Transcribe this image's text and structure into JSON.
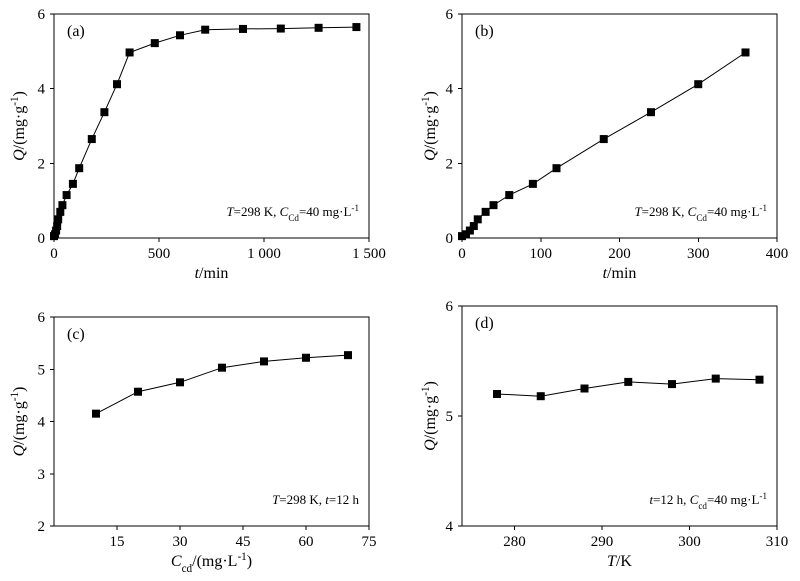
{
  "chart_data": [
    {
      "type": "line",
      "panel_label": "(a)",
      "annotation": {
        "T_sym": "T",
        "T_val": "=298 K, ",
        "C_sym": "C",
        "C_sub": "Cd",
        "C_val": "=40 mg·L",
        "C_sup": "-1"
      },
      "xlabel": {
        "sym": "t",
        "unit": "/min"
      },
      "ylabel": {
        "sym": "Q",
        "unit": "/(mg·g",
        "sup": "-1",
        "close": ")"
      },
      "xlim": [
        0,
        1500
      ],
      "ylim": [
        0,
        6
      ],
      "xticks": [
        0,
        500,
        1000,
        1500
      ],
      "xtick_labels": [
        "0",
        "500",
        "1 000",
        "1 500"
      ],
      "yticks": [
        0,
        2,
        4,
        6
      ],
      "ytick_labels": [
        "0",
        "2",
        "4",
        "6"
      ],
      "series": [
        {
          "x": [
            0,
            5,
            10,
            15,
            20,
            30,
            40,
            60,
            90,
            120,
            180,
            240,
            300,
            360,
            480,
            600,
            720,
            900,
            1080,
            1260,
            1440
          ],
          "y": [
            0.05,
            0.1,
            0.2,
            0.32,
            0.5,
            0.7,
            0.88,
            1.15,
            1.45,
            1.87,
            2.65,
            3.37,
            4.12,
            4.97,
            5.22,
            5.43,
            5.58,
            5.6,
            5.61,
            5.63,
            5.65
          ]
        }
      ]
    },
    {
      "type": "line",
      "panel_label": "(b)",
      "annotation": {
        "T_sym": "T",
        "T_val": "=298 K, ",
        "C_sym": "C",
        "C_sub": "Cd",
        "C_val": "=40 mg·L",
        "C_sup": "-1"
      },
      "xlabel": {
        "sym": "t",
        "unit": "/min"
      },
      "ylabel": {
        "sym": "Q",
        "unit": "/(mg·g",
        "sup": "-1",
        "close": ")"
      },
      "xlim": [
        0,
        400
      ],
      "ylim": [
        0,
        6
      ],
      "xticks": [
        0,
        100,
        200,
        300,
        400
      ],
      "xtick_labels": [
        "0",
        "100",
        "200",
        "300",
        "400"
      ],
      "yticks": [
        0,
        2,
        4,
        6
      ],
      "ytick_labels": [
        "0",
        "2",
        "4",
        "6"
      ],
      "series": [
        {
          "x": [
            0,
            5,
            10,
            15,
            20,
            30,
            40,
            60,
            90,
            120,
            180,
            240,
            300,
            360
          ],
          "y": [
            0.05,
            0.1,
            0.2,
            0.32,
            0.5,
            0.7,
            0.88,
            1.15,
            1.45,
            1.87,
            2.65,
            3.37,
            4.12,
            4.97
          ]
        }
      ]
    },
    {
      "type": "line",
      "panel_label": "(c)",
      "annotation": {
        "T_sym": "T",
        "T_val": "=298 K, ",
        "C_sym": "t",
        "C_sub": "",
        "C_val": "=12 h",
        "C_sup": ""
      },
      "xlabel": {
        "sym": "C",
        "sub": "cd",
        "unit": "/(mg·L",
        "sup": "-1",
        "close": ")"
      },
      "ylabel": {
        "sym": "Q",
        "unit": "/(mg·g",
        "sup": "-1",
        "close": ")"
      },
      "xlim": [
        0,
        75
      ],
      "ylim": [
        2,
        6
      ],
      "xticks": [
        15,
        30,
        45,
        60,
        75
      ],
      "xtick_labels": [
        "15",
        "30",
        "45",
        "60",
        "75"
      ],
      "yticks": [
        2,
        3,
        4,
        5,
        6
      ],
      "ytick_labels": [
        "2",
        "3",
        "4",
        "5",
        "6"
      ],
      "series": [
        {
          "x": [
            10,
            20,
            30,
            40,
            50,
            60,
            70
          ],
          "y": [
            4.15,
            4.57,
            4.75,
            5.03,
            5.15,
            5.22,
            5.27
          ]
        }
      ]
    },
    {
      "type": "line",
      "panel_label": "(d)",
      "annotation": {
        "T_sym": "t",
        "T_val": "=12 h, ",
        "C_sym": "C",
        "C_sub": "cd",
        "C_val": "=40 mg·L",
        "C_sup": "-1"
      },
      "xlabel": {
        "sym": "T",
        "unit": "/K"
      },
      "ylabel": {
        "sym": "Q",
        "unit": "/(mg·g",
        "sup": "-1",
        "close": ")"
      },
      "xlim": [
        274,
        310
      ],
      "ylim": [
        4,
        6
      ],
      "xticks": [
        280,
        290,
        300,
        310
      ],
      "xtick_labels": [
        "280",
        "290",
        "300",
        "310"
      ],
      "yticks": [
        4,
        5,
        6
      ],
      "ytick_labels": [
        "4",
        "5",
        "6"
      ],
      "series": [
        {
          "x": [
            278,
            283,
            288,
            293,
            298,
            303,
            308
          ],
          "y": [
            5.2,
            5.18,
            5.25,
            5.31,
            5.29,
            5.34,
            5.33
          ]
        }
      ]
    }
  ]
}
